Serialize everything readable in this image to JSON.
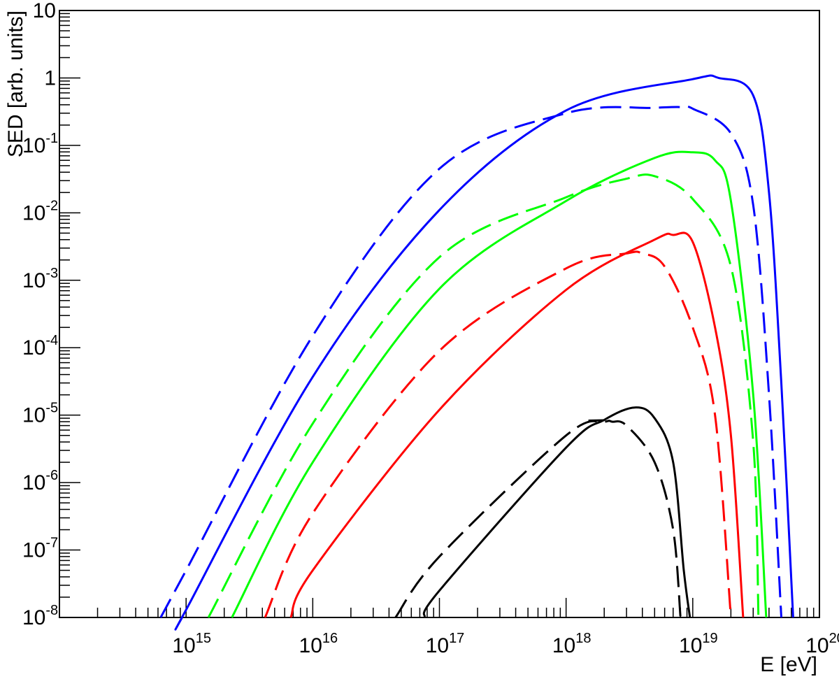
{
  "chart_data": {
    "type": "line",
    "title": "",
    "xlabel": "E [eV]",
    "ylabel": "SED [arb. units]",
    "xscale": "log",
    "yscale": "log",
    "xlim": [
      100000000000000.0,
      1e+20
    ],
    "ylim": [
      1e-08,
      10
    ],
    "grid": false,
    "legend": "none",
    "x_ticks": [
      {
        "base": "10",
        "exp": "15",
        "value": 1000000000000000.0
      },
      {
        "base": "10",
        "exp": "16",
        "value": 1e+16
      },
      {
        "base": "10",
        "exp": "17",
        "value": 1e+17
      },
      {
        "base": "10",
        "exp": "18",
        "value": 1e+18
      },
      {
        "base": "10",
        "exp": "19",
        "value": 1e+19
      },
      {
        "base": "10",
        "exp": "20",
        "value": 1e+20
      }
    ],
    "y_ticks": [
      {
        "base": "10",
        "exp": "-8",
        "value": 1e-08
      },
      {
        "base": "10",
        "exp": "-7",
        "value": 1e-07
      },
      {
        "base": "10",
        "exp": "-6",
        "value": 1e-06
      },
      {
        "base": "10",
        "exp": "-5",
        "value": 1e-05
      },
      {
        "base": "10",
        "exp": "-4",
        "value": 0.0001
      },
      {
        "base": "10",
        "exp": "-3",
        "value": 0.001
      },
      {
        "base": "10",
        "exp": "-2",
        "value": 0.01
      },
      {
        "base": "10",
        "exp": "-1",
        "value": 0.1
      },
      {
        "base": "1",
        "exp": "",
        "value": 1
      },
      {
        "base": "10",
        "exp": "",
        "value": 10
      }
    ],
    "series": [
      {
        "color": "#0000ff",
        "style": "solid",
        "points": [
          [
            930000000000000.0,
            1e-08
          ],
          [
            1000000000000000.0,
            1.3e-08
          ],
          [
            1e+16,
            3.7e-05
          ],
          [
            1e+17,
            0.011
          ],
          [
            1e+18,
            0.33
          ],
          [
            1e+19,
            0.96
          ],
          [
            1.6e+19,
            1.0
          ],
          [
            3e+19,
            0.55
          ],
          [
            4e+19,
            0.02
          ],
          [
            5e+19,
            3e-05
          ],
          [
            6.2e+19,
            1e-08
          ]
        ]
      },
      {
        "color": "#0000ff",
        "style": "dashed",
        "points": [
          [
            630000000000000.0,
            1e-08
          ],
          [
            1000000000000000.0,
            5e-08
          ],
          [
            1e+16,
            0.00015
          ],
          [
            1e+17,
            0.045
          ],
          [
            1e+18,
            0.3
          ],
          [
            5e+18,
            0.36
          ],
          [
            8e+18,
            0.37
          ],
          [
            1e+19,
            0.35
          ],
          [
            2e+19,
            0.15
          ],
          [
            3e+19,
            0.013
          ],
          [
            4e+19,
            2e-05
          ],
          [
            5e+19,
            1e-08
          ]
        ]
      },
      {
        "color": "#00ff00",
        "style": "solid",
        "points": [
          [
            2300000000000000.0,
            1e-08
          ],
          [
            1e+16,
            2e-06
          ],
          [
            1e+17,
            0.00075
          ],
          [
            1e+18,
            0.015
          ],
          [
            5e+18,
            0.065
          ],
          [
            1e+19,
            0.079
          ],
          [
            1.5e+19,
            0.06
          ],
          [
            2e+19,
            0.015
          ],
          [
            3e+19,
            2e-05
          ],
          [
            3.8e+19,
            1e-08
          ]
        ]
      },
      {
        "color": "#00ff00",
        "style": "dashed",
        "points": [
          [
            1500000000000000.0,
            1e-08
          ],
          [
            1e+16,
            7.5e-06
          ],
          [
            1e+17,
            0.0022
          ],
          [
            1e+18,
            0.017
          ],
          [
            3e+18,
            0.032
          ],
          [
            5e+18,
            0.035
          ],
          [
            1e+19,
            0.016
          ],
          [
            2e+19,
            0.0016
          ],
          [
            3e+19,
            4e-06
          ],
          [
            3.3e+19,
            1e-08
          ]
        ]
      },
      {
        "color": "#ff0000",
        "style": "solid",
        "points": [
          [
            6700000000000000.0,
            1e-08
          ],
          [
            1e+16,
            5e-08
          ],
          [
            1e+17,
            1.2e-05
          ],
          [
            1e+18,
            0.00072
          ],
          [
            5e+18,
            0.004
          ],
          [
            7e+18,
            0.0047
          ],
          [
            1e+19,
            0.0037
          ],
          [
            1.5e+19,
            0.0002
          ],
          [
            2e+19,
            5e-06
          ],
          [
            2.5e+19,
            1e-08
          ]
        ]
      },
      {
        "color": "#ff0000",
        "style": "dashed",
        "points": [
          [
            4200000000000000.0,
            1e-08
          ],
          [
            1e+16,
            3.5e-07
          ],
          [
            1e+17,
            9e-05
          ],
          [
            1e+18,
            0.0015
          ],
          [
            3e+18,
            0.0025
          ],
          [
            4e+18,
            0.0025
          ],
          [
            6e+18,
            0.0016
          ],
          [
            1e+19,
            0.0002
          ],
          [
            1.5e+19,
            1e-05
          ],
          [
            2e+19,
            1e-08
          ]
        ]
      },
      {
        "color": "#000000",
        "style": "solid",
        "points": [
          [
            7.6e+16,
            1e-08
          ],
          [
            1e+17,
            2.5e-08
          ],
          [
            1e+18,
            3.3e-06
          ],
          [
            2e+18,
            8.5e-06
          ],
          [
            3.5e+18,
            1.3e-05
          ],
          [
            5e+18,
            9e-06
          ],
          [
            7e+18,
            2e-06
          ],
          [
            8.5e+18,
            5e-08
          ],
          [
            9.5e+18,
            1e-08
          ]
        ]
      },
      {
        "color": "#000000",
        "style": "dashed",
        "points": [
          [
            4.5e+16,
            1e-08
          ],
          [
            1e+17,
            8e-08
          ],
          [
            1e+18,
            5e-06
          ],
          [
            2e+18,
            7.9e-06
          ],
          [
            2.3e+18,
            8e-06
          ],
          [
            3e+18,
            7e-06
          ],
          [
            5e+18,
            2e-06
          ],
          [
            7e+18,
            2e-07
          ],
          [
            8e+18,
            1e-08
          ]
        ]
      }
    ],
    "extra_segments": [
      {
        "color": "#000000",
        "style": "dashed",
        "points": [
          [
            1.5e+18,
            8.3e-06
          ],
          [
            2e+18,
            8.4e-06
          ]
        ]
      }
    ]
  }
}
